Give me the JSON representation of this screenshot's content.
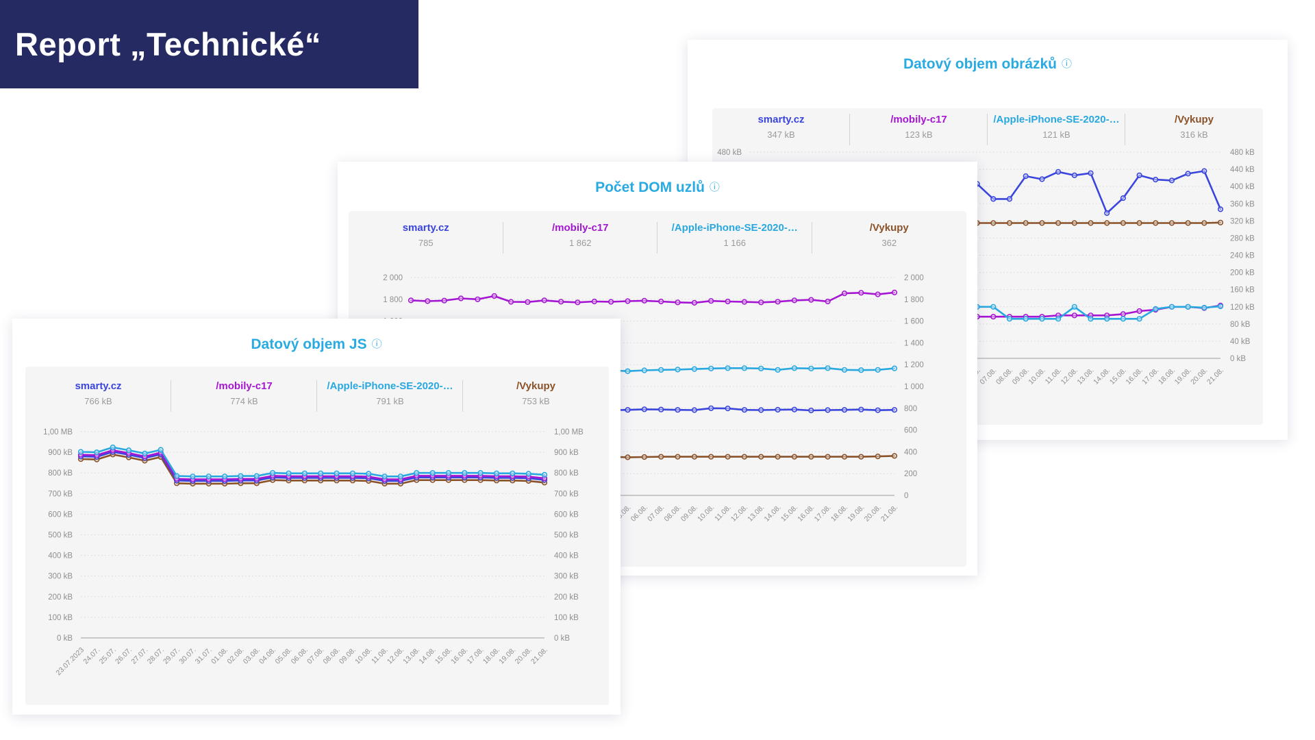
{
  "banner": {
    "title": "Report „Technické“"
  },
  "colors": {
    "banner_bg": "#252a63",
    "title_accent": "#29aae1",
    "chart_bg": "#f5f5f6",
    "series_smarty": "#3a45dc",
    "series_mobily": "#a516d2",
    "series_apple": "#29a8e0",
    "series_vykupy": "#8a5228"
  },
  "panels": [
    {
      "id": "images",
      "title": "Datový objem obrázků",
      "info_icon": "ⓘ",
      "legend": [
        {
          "slug": "smarty-cz",
          "label": "smarty.cz",
          "value": "347 kB",
          "color": "#3a45dc"
        },
        {
          "slug": "mobily-c17",
          "label": "/mobily-c17",
          "value": "123 kB",
          "color": "#a516d2"
        },
        {
          "slug": "apple-iphone",
          "label": "/Apple-iPhone-SE-2020-…",
          "value": "121 kB",
          "color": "#29a8e0"
        },
        {
          "slug": "vykupy",
          "label": "/Vykupy",
          "value": "316 kB",
          "color": "#8a5228"
        }
      ]
    },
    {
      "id": "dom",
      "title": "Počet DOM uzlů",
      "info_icon": "ⓘ",
      "legend": [
        {
          "slug": "smarty-cz",
          "label": "smarty.cz",
          "value": "785",
          "color": "#3a45dc"
        },
        {
          "slug": "mobily-c17",
          "label": "/mobily-c17",
          "value": "1 862",
          "color": "#a516d2"
        },
        {
          "slug": "apple-iphone",
          "label": "/Apple-iPhone-SE-2020-…",
          "value": "1 166",
          "color": "#29a8e0"
        },
        {
          "slug": "vykupy",
          "label": "/Vykupy",
          "value": "362",
          "color": "#8a5228"
        }
      ]
    },
    {
      "id": "js",
      "title": "Datový objem JS",
      "info_icon": "ⓘ",
      "legend": [
        {
          "slug": "smarty-cz",
          "label": "smarty.cz",
          "value": "766 kB",
          "color": "#3a45dc"
        },
        {
          "slug": "mobily-c17",
          "label": "/mobily-c17",
          "value": "774 kB",
          "color": "#a516d2"
        },
        {
          "slug": "apple-iphone",
          "label": "/Apple-iPhone-SE-2020-…",
          "value": "791 kB",
          "color": "#29a8e0"
        },
        {
          "slug": "vykupy",
          "label": "/Vykupy",
          "value": "753 kB",
          "color": "#8a5228"
        }
      ]
    }
  ],
  "chart_data": [
    {
      "id": "images",
      "type": "line",
      "title": "Datový objem obrázků",
      "ylabel": "kB",
      "ylim": [
        0,
        480
      ],
      "grid": "dotted-horizontal",
      "legend_position": "top",
      "x": [
        "23.07.2023",
        "24.07.",
        "25.07.",
        "26.07.",
        "27.07.",
        "28.07.",
        "29.07.",
        "30.07.",
        "31.07.",
        "01.08.",
        "02.08.",
        "03.08.",
        "04.08.",
        "05.08.",
        "06.08.",
        "07.08.",
        "08.08.",
        "09.08.",
        "10.08.",
        "11.08.",
        "12.08.",
        "13.08.",
        "14.08.",
        "15.08.",
        "16.08.",
        "17.08.",
        "18.08.",
        "19.08.",
        "20.08.",
        "21.08."
      ],
      "yticks": [
        {
          "v": 480,
          "label": "480 kB"
        },
        {
          "v": 440,
          "label": "440 kB"
        },
        {
          "v": 400,
          "label": "400 kB"
        },
        {
          "v": 360,
          "label": "360 kB"
        },
        {
          "v": 320,
          "label": "320 kB"
        },
        {
          "v": 280,
          "label": "280 kB"
        },
        {
          "v": 240,
          "label": "240 kB"
        },
        {
          "v": 200,
          "label": "200 kB"
        },
        {
          "v": 160,
          "label": "160 kB"
        },
        {
          "v": 120,
          "label": "120 kB"
        },
        {
          "v": 80,
          "label": "80 kB"
        },
        {
          "v": 40,
          "label": "40 kB"
        },
        {
          "v": 0,
          "label": "0 kB"
        }
      ],
      "series": [
        {
          "name": "/Vykupy",
          "color": "#8a5228",
          "values": [
            315,
            315,
            315,
            315,
            315,
            315,
            315,
            315,
            315,
            315,
            315,
            315,
            315,
            315,
            315,
            315,
            315,
            315,
            315,
            315,
            315,
            315,
            315,
            315,
            315,
            315,
            315,
            315,
            315,
            316
          ]
        },
        {
          "name": "/mobily-c17",
          "color": "#a516d2",
          "values": [
            97,
            97,
            97,
            97,
            97,
            97,
            97,
            97,
            97,
            97,
            97,
            97,
            97,
            97,
            97,
            97,
            97,
            97,
            97,
            100,
            100,
            100,
            100,
            103,
            110,
            113,
            120,
            120,
            117,
            123
          ]
        },
        {
          "name": "/Apple-iPhone-SE-2020-…",
          "color": "#29a8e0",
          "values": [
            120,
            120,
            120,
            118,
            120,
            120,
            118,
            120,
            120,
            118,
            120,
            120,
            118,
            120,
            120,
            120,
            92,
            92,
            92,
            92,
            120,
            92,
            92,
            92,
            92,
            115,
            120,
            120,
            118,
            121
          ]
        },
        {
          "name": "smarty.cz",
          "color": "#3a45dc",
          "values": [
            400,
            405,
            410,
            400,
            396,
            405,
            400,
            410,
            405,
            398,
            400,
            403,
            406,
            402,
            406,
            371,
            371,
            424,
            417,
            434,
            426,
            431,
            338,
            373,
            426,
            416,
            414,
            430,
            436,
            347
          ]
        }
      ]
    },
    {
      "id": "dom",
      "type": "line",
      "title": "Počet DOM uzlů",
      "ylabel": "",
      "ylim": [
        0,
        2000
      ],
      "grid": "dotted-horizontal",
      "legend_position": "top",
      "x": [
        "23.07.2023",
        "24.07.",
        "25.07.",
        "26.07.",
        "27.07.",
        "28.07.",
        "29.07.",
        "30.07.",
        "31.07.",
        "01.08.",
        "02.08.",
        "03.08.",
        "04.08.",
        "05.08.",
        "06.08.",
        "07.08.",
        "08.08.",
        "09.08.",
        "10.08.",
        "11.08.",
        "12.08.",
        "13.08.",
        "14.08.",
        "15.08.",
        "16.08.",
        "17.08.",
        "18.08.",
        "19.08.",
        "20.08.",
        "21.08."
      ],
      "yticks": [
        {
          "v": 2000,
          "label": "2 000"
        },
        {
          "v": 1800,
          "label": "1 800"
        },
        {
          "v": 1600,
          "label": "1 600"
        },
        {
          "v": 1400,
          "label": "1 400"
        },
        {
          "v": 1200,
          "label": "1 200"
        },
        {
          "v": 1000,
          "label": "1 000"
        },
        {
          "v": 800,
          "label": "800"
        },
        {
          "v": 600,
          "label": "600"
        },
        {
          "v": 400,
          "label": "400"
        },
        {
          "v": 200,
          "label": "200"
        },
        {
          "v": 0,
          "label": "0"
        }
      ],
      "series": [
        {
          "name": "smarty.cz",
          "color": "#3a45dc",
          "values": [
            780,
            782,
            785,
            786,
            785,
            783,
            780,
            785,
            788,
            786,
            785,
            783,
            782,
            785,
            790,
            788,
            785,
            783,
            800,
            798,
            785,
            783,
            786,
            788,
            780,
            783,
            785,
            788,
            782,
            785
          ]
        },
        {
          "name": "/Vykupy",
          "color": "#8a5228",
          "values": [
            344,
            348,
            352,
            355,
            355,
            355,
            355,
            355,
            355,
            355,
            355,
            355,
            355,
            350,
            352,
            355,
            355,
            355,
            355,
            355,
            355,
            355,
            355,
            355,
            355,
            355,
            355,
            355,
            358,
            362
          ]
        },
        {
          "name": "/Apple-iPhone-SE-2020-…",
          "color": "#29a8e0",
          "values": [
            1138,
            1144,
            1150,
            1152,
            1150,
            1148,
            1150,
            1155,
            1158,
            1155,
            1152,
            1150,
            1148,
            1140,
            1148,
            1152,
            1155,
            1160,
            1165,
            1168,
            1168,
            1165,
            1152,
            1168,
            1165,
            1168,
            1152,
            1150,
            1152,
            1166
          ]
        },
        {
          "name": "/mobily-c17",
          "color": "#a516d2",
          "values": [
            1790,
            1783,
            1788,
            1808,
            1800,
            1830,
            1777,
            1775,
            1790,
            1778,
            1772,
            1780,
            1777,
            1783,
            1787,
            1780,
            1772,
            1768,
            1785,
            1780,
            1776,
            1772,
            1778,
            1790,
            1795,
            1780,
            1855,
            1860,
            1845,
            1862
          ]
        }
      ]
    },
    {
      "id": "js",
      "type": "line",
      "title": "Datový objem JS",
      "ylabel": "kB",
      "ylim": [
        0,
        1000
      ],
      "grid": "dotted-horizontal",
      "legend_position": "top",
      "x": [
        "23.07.2023",
        "24.07.",
        "25.07.",
        "26.07.",
        "27.07.",
        "28.07.",
        "29.07.",
        "30.07.",
        "31.07.",
        "01.08.",
        "02.08.",
        "03.08.",
        "04.08.",
        "05.08.",
        "06.08.",
        "07.08.",
        "08.08.",
        "09.08.",
        "10.08.",
        "11.08.",
        "12.08.",
        "13.08.",
        "14.08.",
        "15.08.",
        "16.08.",
        "17.08.",
        "18.08.",
        "19.08.",
        "20.08.",
        "21.08."
      ],
      "yticks": [
        {
          "v": 1000,
          "label": "1,00 MB"
        },
        {
          "v": 900,
          "label": "900 kB"
        },
        {
          "v": 800,
          "label": "800 kB"
        },
        {
          "v": 700,
          "label": "700 kB"
        },
        {
          "v": 600,
          "label": "600 kB"
        },
        {
          "v": 500,
          "label": "500 kB"
        },
        {
          "v": 400,
          "label": "400 kB"
        },
        {
          "v": 300,
          "label": "300 kB"
        },
        {
          "v": 200,
          "label": "200 kB"
        },
        {
          "v": 100,
          "label": "100 kB"
        },
        {
          "v": 0,
          "label": "0 kB"
        }
      ],
      "series": [
        {
          "name": "/Vykupy",
          "color": "#8a5228",
          "values": [
            867,
            865,
            889,
            875,
            859,
            877,
            750,
            748,
            748,
            748,
            750,
            750,
            765,
            763,
            763,
            763,
            763,
            763,
            761,
            748,
            748,
            765,
            765,
            765,
            765,
            765,
            763,
            763,
            761,
            753
          ]
        },
        {
          "name": "smarty.cz",
          "color": "#3a45dc",
          "values": [
            880,
            878,
            902,
            888,
            872,
            890,
            763,
            761,
            761,
            761,
            763,
            763,
            778,
            776,
            776,
            776,
            776,
            776,
            774,
            761,
            761,
            778,
            778,
            778,
            778,
            778,
            776,
            776,
            774,
            766
          ]
        },
        {
          "name": "/mobily-c17",
          "color": "#a516d2",
          "values": [
            888,
            886,
            910,
            896,
            880,
            898,
            771,
            769,
            769,
            769,
            771,
            771,
            786,
            784,
            784,
            784,
            784,
            784,
            782,
            769,
            769,
            786,
            786,
            786,
            786,
            786,
            784,
            784,
            782,
            774
          ]
        },
        {
          "name": "/Apple-iPhone-SE-2020-…",
          "color": "#29a8e0",
          "values": [
            902,
            900,
            924,
            910,
            894,
            912,
            785,
            783,
            783,
            783,
            785,
            785,
            800,
            798,
            798,
            798,
            798,
            798,
            796,
            783,
            783,
            800,
            800,
            800,
            800,
            800,
            798,
            798,
            796,
            791
          ]
        }
      ]
    }
  ]
}
